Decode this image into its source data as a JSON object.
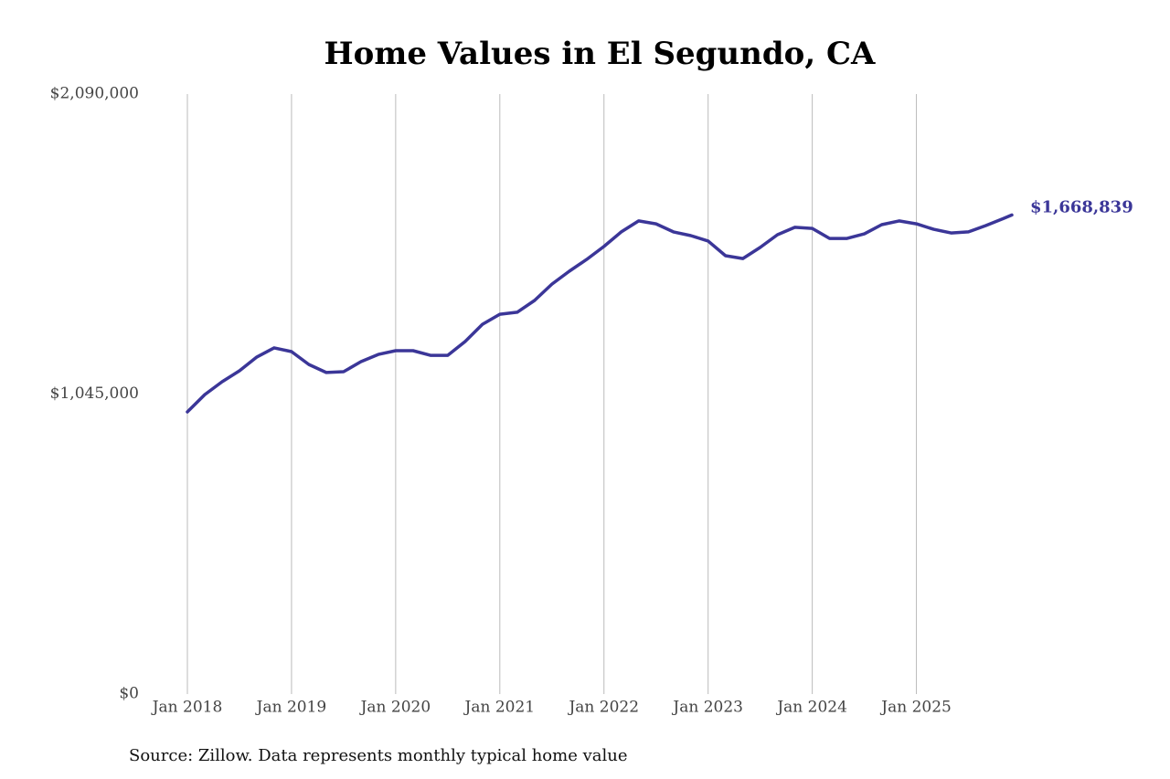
{
  "chart_data": {
    "type": "line",
    "title": "Home Values in El Segundo, CA",
    "source": "Source: Zillow. Data represents monthly typical home value",
    "x": [
      "2018-01",
      "2018-03",
      "2018-05",
      "2018-07",
      "2018-09",
      "2018-11",
      "2019-01",
      "2019-03",
      "2019-05",
      "2019-07",
      "2019-09",
      "2019-11",
      "2020-01",
      "2020-03",
      "2020-05",
      "2020-07",
      "2020-09",
      "2020-11",
      "2021-01",
      "2021-03",
      "2021-05",
      "2021-07",
      "2021-09",
      "2021-11",
      "2022-01",
      "2022-03",
      "2022-05",
      "2022-07",
      "2022-09",
      "2022-11",
      "2023-01",
      "2023-03",
      "2023-05",
      "2023-07",
      "2023-09",
      "2023-11",
      "2024-01",
      "2024-03",
      "2024-05",
      "2024-07",
      "2024-09",
      "2024-11",
      "2025-01",
      "2025-03",
      "2025-05",
      "2025-07",
      "2025-09",
      "2025-11",
      "2025-12"
    ],
    "series": [
      {
        "name": "Typical home value",
        "color": "#3b3698",
        "values": [
          983000,
          1043000,
          1088000,
          1126000,
          1174000,
          1206000,
          1193000,
          1148000,
          1120000,
          1123000,
          1158000,
          1183000,
          1196000,
          1196000,
          1180000,
          1180000,
          1228000,
          1288000,
          1323000,
          1330000,
          1371000,
          1428000,
          1473000,
          1514000,
          1559000,
          1610000,
          1648000,
          1638000,
          1610000,
          1597000,
          1578000,
          1527000,
          1517000,
          1556000,
          1600000,
          1626000,
          1622000,
          1587000,
          1587000,
          1603000,
          1635000,
          1648000,
          1638000,
          1619000,
          1606000,
          1610000,
          1632000,
          1656000,
          1668839
        ],
        "value_labels": [
          null,
          null,
          null,
          null,
          null,
          null,
          null,
          null,
          null,
          null,
          null,
          null,
          null,
          null,
          null,
          null,
          null,
          null,
          null,
          null,
          null,
          null,
          null,
          null,
          null,
          null,
          null,
          null,
          null,
          null,
          null,
          null,
          null,
          null,
          null,
          null,
          null,
          null,
          null,
          null,
          null,
          null,
          null,
          null,
          null,
          null,
          null,
          null,
          "$1,668,839"
        ]
      }
    ],
    "xlim": [
      "2018-01",
      "2025-12"
    ],
    "xticks": [
      {
        "value": "2018-01",
        "label": "Jan 2018"
      },
      {
        "value": "2019-01",
        "label": "Jan 2019"
      },
      {
        "value": "2020-01",
        "label": "Jan 2020"
      },
      {
        "value": "2021-01",
        "label": "Jan 2021"
      },
      {
        "value": "2022-01",
        "label": "Jan 2022"
      },
      {
        "value": "2023-01",
        "label": "Jan 2023"
      },
      {
        "value": "2024-01",
        "label": "Jan 2024"
      },
      {
        "value": "2025-01",
        "label": "Jan 2025"
      }
    ],
    "ylim": [
      0,
      2090000
    ],
    "yticks": [
      {
        "value": 0,
        "label": "$0"
      },
      {
        "value": 1045000,
        "label": "$1,045,000"
      },
      {
        "value": 2090000,
        "label": "$2,090,000"
      }
    ],
    "grid": "x"
  }
}
